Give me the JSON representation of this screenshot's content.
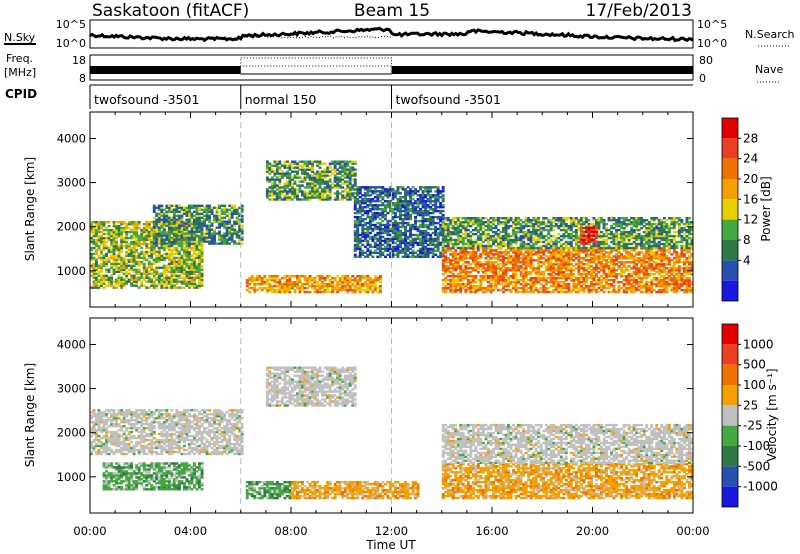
{
  "header": {
    "title_left": "Saskatoon (fitACF)",
    "title_center": "Beam 15",
    "title_right": "17/Feb/2013"
  },
  "sky_panel": {
    "left_label": "N.Sky",
    "right_label": "N.Search",
    "ticks_left": [
      "10^5",
      "10^0"
    ],
    "ticks_right": [
      "10^5",
      "10^0"
    ]
  },
  "freq_panel": {
    "left_label_1": "Freq.",
    "left_label_2": "[MHz]",
    "right_label": "Nave",
    "ticks_left": [
      "18",
      "8"
    ],
    "ticks_right": [
      "80",
      "0"
    ]
  },
  "cpid_panel": {
    "label": "CPID",
    "segments": [
      {
        "text": "twofsound -3501",
        "start_h": 0,
        "end_h": 6
      },
      {
        "text": "normal 150",
        "start_h": 6,
        "end_h": 12
      },
      {
        "text": "twofsound -3501",
        "start_h": 12,
        "end_h": 24
      }
    ]
  },
  "x_axis": {
    "label": "Time UT",
    "ticks": [
      "00:00",
      "04:00",
      "08:00",
      "12:00",
      "16:00",
      "20:00",
      "00:00"
    ]
  },
  "colors": {
    "power": [
      "#1818e0",
      "#2850b0",
      "#2f7848",
      "#44a840",
      "#e8d000",
      "#f5a000",
      "#f07000",
      "#e84020",
      "#e00000"
    ],
    "velocity": [
      "#1818e0",
      "#2850b0",
      "#2f7848",
      "#44a840",
      "#c0c0c0",
      "#f5a000",
      "#f07000",
      "#e84020",
      "#e00000"
    ]
  },
  "chart_data": [
    {
      "type": "heatmap",
      "name": "power",
      "ylabel": "Slant Range [km]",
      "xlabel": "Time UT",
      "xlim": [
        0,
        24
      ],
      "ylim": [
        180,
        4600
      ],
      "yticks": [
        "1000",
        "2000",
        "3000",
        "4000"
      ],
      "colorbar": {
        "label": "Power [dB]",
        "ticks": [
          "28",
          "24",
          "20",
          "16",
          "12",
          "8",
          "4"
        ],
        "range": [
          0,
          32
        ]
      },
      "regions": [
        {
          "t0": 0.0,
          "t1": 4.5,
          "r0": 600,
          "r1": 2100,
          "level": 14
        },
        {
          "t0": 2.5,
          "t1": 6.0,
          "r0": 1600,
          "r1": 2500,
          "level": 10
        },
        {
          "t0": 6.2,
          "t1": 11.5,
          "r0": 500,
          "r1": 900,
          "level": 20
        },
        {
          "t0": 7.0,
          "t1": 10.5,
          "r0": 2600,
          "r1": 3500,
          "level": 11
        },
        {
          "t0": 10.5,
          "t1": 14.0,
          "r0": 1300,
          "r1": 2900,
          "level": 7
        },
        {
          "t0": 14.0,
          "t1": 24.0,
          "r0": 500,
          "r1": 1500,
          "level": 22
        },
        {
          "t0": 14.0,
          "t1": 24.0,
          "r0": 1500,
          "r1": 2200,
          "level": 11
        },
        {
          "t0": 19.5,
          "t1": 20.2,
          "r0": 1600,
          "r1": 2000,
          "level": 28
        }
      ]
    },
    {
      "type": "heatmap",
      "name": "velocity",
      "ylabel": "Slant Range [km]",
      "xlabel": "Time UT",
      "xlim": [
        0,
        24
      ],
      "ylim": [
        180,
        4600
      ],
      "yticks": [
        "1000",
        "2000",
        "3000",
        "4000"
      ],
      "colorbar": {
        "label": "Velocity [m s⁻¹]",
        "ticks": [
          "1000",
          "500",
          "100",
          "25",
          "-25",
          "-100",
          "-500",
          "-1000"
        ]
      },
      "regions": [
        {
          "t0": 0.0,
          "t1": 6.0,
          "r0": 1500,
          "r1": 2500,
          "class": "grey"
        },
        {
          "t0": 0.5,
          "t1": 4.5,
          "r0": 700,
          "r1": 1300,
          "class": "green"
        },
        {
          "t0": 6.2,
          "t1": 8.0,
          "r0": 500,
          "r1": 900,
          "class": "green"
        },
        {
          "t0": 8.0,
          "t1": 13.0,
          "r0": 500,
          "r1": 900,
          "class": "orange"
        },
        {
          "t0": 7.0,
          "t1": 10.5,
          "r0": 2600,
          "r1": 3500,
          "class": "grey"
        },
        {
          "t0": 14.0,
          "t1": 24.0,
          "r0": 500,
          "r1": 1300,
          "class": "orange"
        },
        {
          "t0": 14.0,
          "t1": 24.0,
          "r0": 1300,
          "r1": 2200,
          "class": "grey"
        }
      ]
    }
  ]
}
